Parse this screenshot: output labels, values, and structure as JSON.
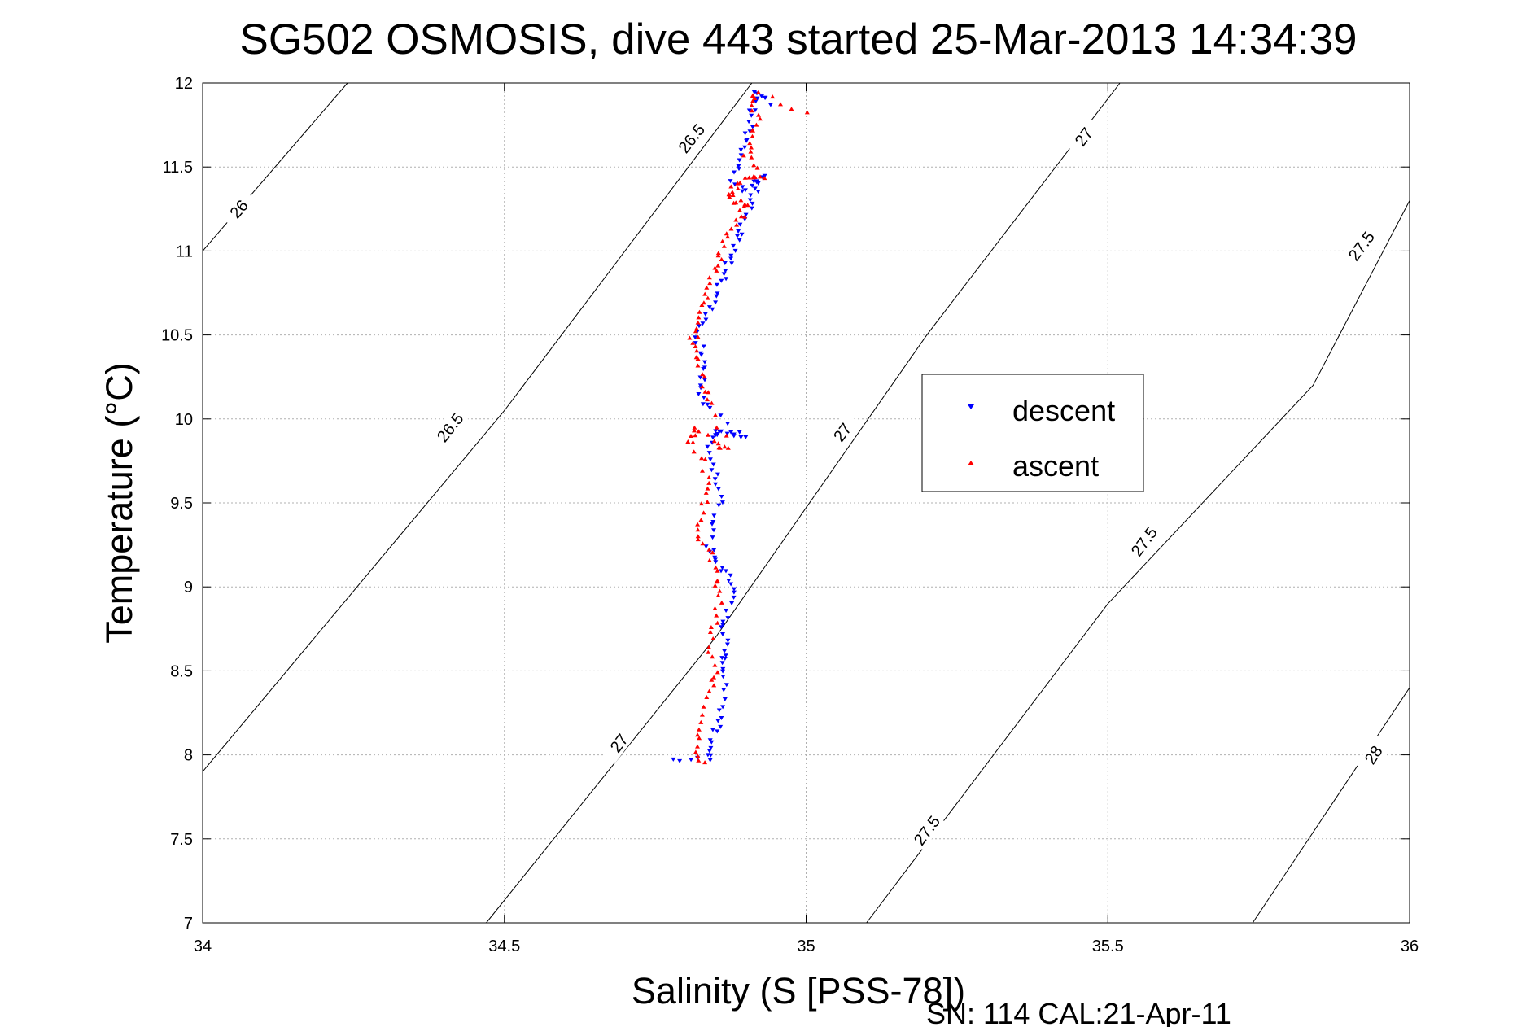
{
  "chart_data": {
    "type": "scatter",
    "title": "SG502 OSMOSIS, dive 443 started 25-Mar-2013 14:34:39",
    "xlabel": "Salinity (S [PSS-78])",
    "ylabel": "Temperature (°C)",
    "xlim": [
      34,
      36
    ],
    "ylim": [
      7,
      12
    ],
    "xticks": [
      "34",
      "34.5",
      "35",
      "35.5",
      "36"
    ],
    "yticks": [
      "7",
      "7.5",
      "8",
      "8.5",
      "9",
      "9.5",
      "10",
      "10.5",
      "11",
      "11.5",
      "12"
    ],
    "grid": true,
    "legend_position": "center-right",
    "footer": "SN: 114  CAL:21-Apr-11",
    "density_contours": [
      {
        "label": "26",
        "points": [
          [
            34.0,
            11.0
          ],
          [
            34.24,
            12.0
          ]
        ],
        "label_pos": [
          34.06,
          11.25
        ]
      },
      {
        "label": "26.5",
        "points": [
          [
            34.0,
            7.9
          ],
          [
            34.5,
            10.05
          ],
          [
            34.91,
            12.0
          ]
        ],
        "label_pos": [
          34.41,
          9.95
        ],
        "label2_pos": [
          34.81,
          11.67
        ]
      },
      {
        "label": "27",
        "points": [
          [
            34.47,
            7.0
          ],
          [
            34.85,
            8.7
          ],
          [
            35.2,
            10.5
          ],
          [
            35.52,
            12.0
          ]
        ],
        "label_pos": [
          34.69,
          8.07
        ],
        "label2_pos": [
          35.06,
          9.92
        ],
        "label3_pos": [
          35.46,
          11.68
        ]
      },
      {
        "label": "27.5",
        "points": [
          [
            35.1,
            7.0
          ],
          [
            35.5,
            8.9
          ],
          [
            35.84,
            10.2
          ],
          [
            36.0,
            11.3
          ]
        ],
        "label_pos": [
          35.2,
          7.55
        ],
        "label2_pos": [
          35.56,
          9.27
        ],
        "label3_pos": [
          35.92,
          11.03
        ]
      },
      {
        "label": "28",
        "points": [
          [
            35.74,
            7.0
          ],
          [
            36.0,
            8.4
          ]
        ],
        "label_pos": [
          35.94,
          8.0
        ]
      }
    ],
    "series": [
      {
        "name": "descent",
        "color": "#0000ff",
        "marker": "triangle-down",
        "points": [
          [
            34.78,
            7.97
          ],
          [
            34.84,
            7.97
          ],
          [
            34.84,
            8.05
          ],
          [
            34.85,
            8.15
          ],
          [
            34.86,
            8.25
          ],
          [
            34.87,
            8.42
          ],
          [
            34.86,
            8.55
          ],
          [
            34.87,
            8.62
          ],
          [
            34.86,
            8.75
          ],
          [
            34.87,
            8.85
          ],
          [
            34.88,
            9.0
          ],
          [
            34.87,
            9.08
          ],
          [
            34.85,
            9.15
          ],
          [
            34.84,
            9.25
          ],
          [
            34.85,
            9.4
          ],
          [
            34.86,
            9.55
          ],
          [
            34.85,
            9.68
          ],
          [
            34.84,
            9.8
          ],
          [
            34.85,
            9.9
          ],
          [
            34.86,
            9.93
          ],
          [
            34.88,
            9.9
          ],
          [
            34.9,
            9.88
          ],
          [
            34.84,
            10.05
          ],
          [
            34.82,
            10.15
          ],
          [
            34.83,
            10.25
          ],
          [
            34.83,
            10.38
          ],
          [
            34.82,
            10.48
          ],
          [
            34.83,
            10.6
          ],
          [
            34.85,
            10.7
          ],
          [
            34.86,
            10.82
          ],
          [
            34.87,
            10.92
          ],
          [
            34.88,
            11.0
          ],
          [
            34.89,
            11.1
          ],
          [
            34.9,
            11.2
          ],
          [
            34.91,
            11.3
          ],
          [
            34.92,
            11.4
          ],
          [
            34.93,
            11.45
          ],
          [
            34.9,
            11.35
          ],
          [
            34.88,
            11.42
          ],
          [
            34.89,
            11.55
          ],
          [
            34.9,
            11.65
          ],
          [
            34.91,
            11.75
          ],
          [
            34.91,
            11.85
          ],
          [
            34.92,
            11.95
          ],
          [
            34.94,
            11.88
          ]
        ]
      },
      {
        "name": "ascent",
        "color": "#ff0000",
        "marker": "triangle-up",
        "points": [
          [
            34.83,
            7.95
          ],
          [
            34.82,
            8.05
          ],
          [
            34.83,
            8.2
          ],
          [
            34.84,
            8.38
          ],
          [
            34.85,
            8.5
          ],
          [
            34.84,
            8.65
          ],
          [
            34.85,
            8.8
          ],
          [
            34.86,
            8.95
          ],
          [
            34.85,
            9.05
          ],
          [
            34.84,
            9.2
          ],
          [
            34.82,
            9.3
          ],
          [
            34.83,
            9.45
          ],
          [
            34.84,
            9.58
          ],
          [
            34.83,
            9.75
          ],
          [
            34.81,
            9.88
          ],
          [
            34.82,
            9.95
          ],
          [
            34.85,
            9.85
          ],
          [
            34.87,
            9.82
          ],
          [
            34.84,
            10.1
          ],
          [
            34.83,
            10.2
          ],
          [
            34.82,
            10.35
          ],
          [
            34.81,
            10.45
          ],
          [
            34.82,
            10.55
          ],
          [
            34.83,
            10.68
          ],
          [
            34.84,
            10.78
          ],
          [
            34.85,
            10.9
          ],
          [
            34.86,
            11.0
          ],
          [
            34.87,
            11.1
          ],
          [
            34.89,
            11.2
          ],
          [
            34.9,
            11.28
          ],
          [
            34.88,
            11.3
          ],
          [
            34.87,
            11.35
          ],
          [
            34.89,
            11.4
          ],
          [
            34.91,
            11.45
          ],
          [
            34.93,
            11.45
          ],
          [
            34.9,
            11.58
          ],
          [
            34.91,
            11.68
          ],
          [
            34.92,
            11.78
          ],
          [
            34.91,
            11.88
          ],
          [
            34.92,
            11.95
          ],
          [
            35.0,
            11.82
          ]
        ]
      }
    ]
  }
}
